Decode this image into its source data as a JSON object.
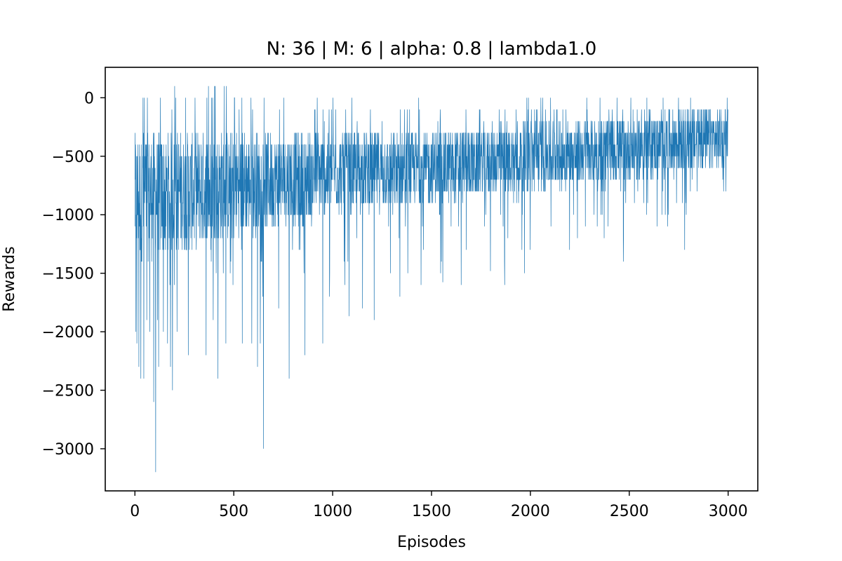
{
  "chart_data": {
    "type": "line",
    "title": "N: 36 | M: 6 | alpha: 0.8 | lambda1.0",
    "xlabel": "Episodes",
    "ylabel": "Rewards",
    "xlim": [
      -150,
      3150
    ],
    "ylim": [
      -3360,
      260
    ],
    "xticks": [
      0,
      500,
      1000,
      1500,
      2000,
      2500,
      3000
    ],
    "yticks": [
      0,
      -500,
      -1000,
      -1500,
      -2000,
      -2500,
      -3000
    ],
    "xtick_labels": [
      "0",
      "500",
      "1000",
      "1500",
      "2000",
      "2500",
      "3000"
    ],
    "ytick_labels": [
      "0",
      "−500",
      "−1000",
      "−1500",
      "−2000",
      "−2500",
      "−3000"
    ],
    "grid": false,
    "series": [
      {
        "color": "#1f77b4",
        "episodes": 3000,
        "value_step": 100,
        "x_start": 0,
        "x_end": 2999,
        "envelope": [
          {
            "x": 0,
            "min": -2400,
            "max": 100,
            "typical_low": -1400,
            "typical_high": -300
          },
          {
            "x": 250,
            "min": -2200,
            "max": 100,
            "typical_low": -1300,
            "typical_high": -300
          },
          {
            "x": 500,
            "min": -2300,
            "max": 100,
            "typical_low": -1200,
            "typical_high": -300
          },
          {
            "x": 750,
            "min": -2000,
            "max": 0,
            "typical_low": -1100,
            "typical_high": -300
          },
          {
            "x": 1000,
            "min": -1900,
            "max": 0,
            "typical_low": -1000,
            "typical_high": -300
          },
          {
            "x": 1250,
            "min": -1800,
            "max": 0,
            "typical_low": -950,
            "typical_high": -300
          },
          {
            "x": 1500,
            "min": -1600,
            "max": 0,
            "typical_low": -900,
            "typical_high": -300
          },
          {
            "x": 1750,
            "min": -1500,
            "max": 0,
            "typical_low": -850,
            "typical_high": -250
          },
          {
            "x": 2000,
            "min": -1400,
            "max": 0,
            "typical_low": -800,
            "typical_high": -200
          },
          {
            "x": 2250,
            "min": -1300,
            "max": 0,
            "typical_low": -750,
            "typical_high": -200
          },
          {
            "x": 2500,
            "min": -1200,
            "max": 0,
            "typical_low": -700,
            "typical_high": -150
          },
          {
            "x": 2750,
            "min": -1100,
            "max": 0,
            "typical_low": -650,
            "typical_high": -100
          },
          {
            "x": 3000,
            "min": -1000,
            "max": 0,
            "typical_low": -600,
            "typical_high": -100
          }
        ],
        "spikes": [
          {
            "x": 5,
            "y": -2000
          },
          {
            "x": 10,
            "y": -2100
          },
          {
            "x": 20,
            "y": -2300
          },
          {
            "x": 30,
            "y": -2400
          },
          {
            "x": 45,
            "y": -2400
          },
          {
            "x": 60,
            "y": -1900
          },
          {
            "x": 75,
            "y": -2000
          },
          {
            "x": 95,
            "y": -2600
          },
          {
            "x": 105,
            "y": -3200
          },
          {
            "x": 120,
            "y": -2300
          },
          {
            "x": 180,
            "y": -2300
          },
          {
            "x": 190,
            "y": -2500
          },
          {
            "x": 270,
            "y": -2200
          },
          {
            "x": 360,
            "y": -2200
          },
          {
            "x": 420,
            "y": -2400
          },
          {
            "x": 460,
            "y": -2100
          },
          {
            "x": 620,
            "y": -2300
          },
          {
            "x": 650,
            "y": -3000
          },
          {
            "x": 780,
            "y": -2400
          },
          {
            "x": 860,
            "y": -2200
          },
          {
            "x": 950,
            "y": -2100
          },
          {
            "x": 1210,
            "y": -1900
          },
          {
            "x": 1340,
            "y": -1700
          },
          {
            "x": 1650,
            "y": -1600
          },
          {
            "x": 1870,
            "y": -1600
          },
          {
            "x": 1970,
            "y": -1500
          },
          {
            "x": 2470,
            "y": -1400
          },
          {
            "x": 2780,
            "y": -1300
          },
          {
            "x": 3000,
            "y": -1000
          }
        ]
      }
    ]
  }
}
